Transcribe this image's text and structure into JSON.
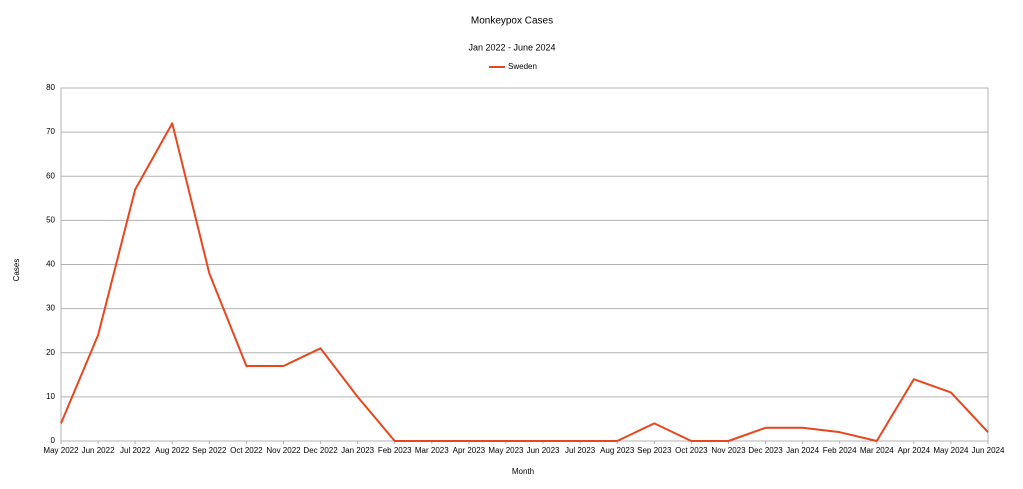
{
  "chart_data": {
    "type": "line",
    "title": "Monkeypox Cases",
    "subtitle": "Jan 2022 - June 2024",
    "x_label": "Month",
    "y_label": "Cases",
    "categories": [
      "May 2022",
      "Jun 2022",
      "Jul 2022",
      "Aug 2022",
      "Sep 2022",
      "Oct 2022",
      "Nov 2022",
      "Dec 2022",
      "Jan 2023",
      "Feb 2023",
      "Mar 2023",
      "Apr 2023",
      "May 2023",
      "Jun 2023",
      "Jul 2023",
      "Aug 2023",
      "Sep 2023",
      "Oct 2023",
      "Nov 2023",
      "Dec 2023",
      "Jan 2024",
      "Feb 2024",
      "Mar 2024",
      "Apr 2024",
      "May 2024",
      "Jun 2024"
    ],
    "series": [
      {
        "name": "Sweden",
        "color": "#e8461e",
        "values": [
          4,
          24,
          57,
          72,
          38,
          17,
          17,
          21,
          10,
          0,
          0,
          0,
          0,
          0,
          0,
          0,
          4,
          0,
          0,
          3,
          3,
          2,
          0,
          14,
          11,
          2
        ]
      }
    ],
    "ylim": [
      0,
      80
    ],
    "yticks": [
      0,
      10,
      20,
      30,
      40,
      50,
      60,
      70,
      80
    ],
    "grid": true,
    "legend": "top"
  }
}
